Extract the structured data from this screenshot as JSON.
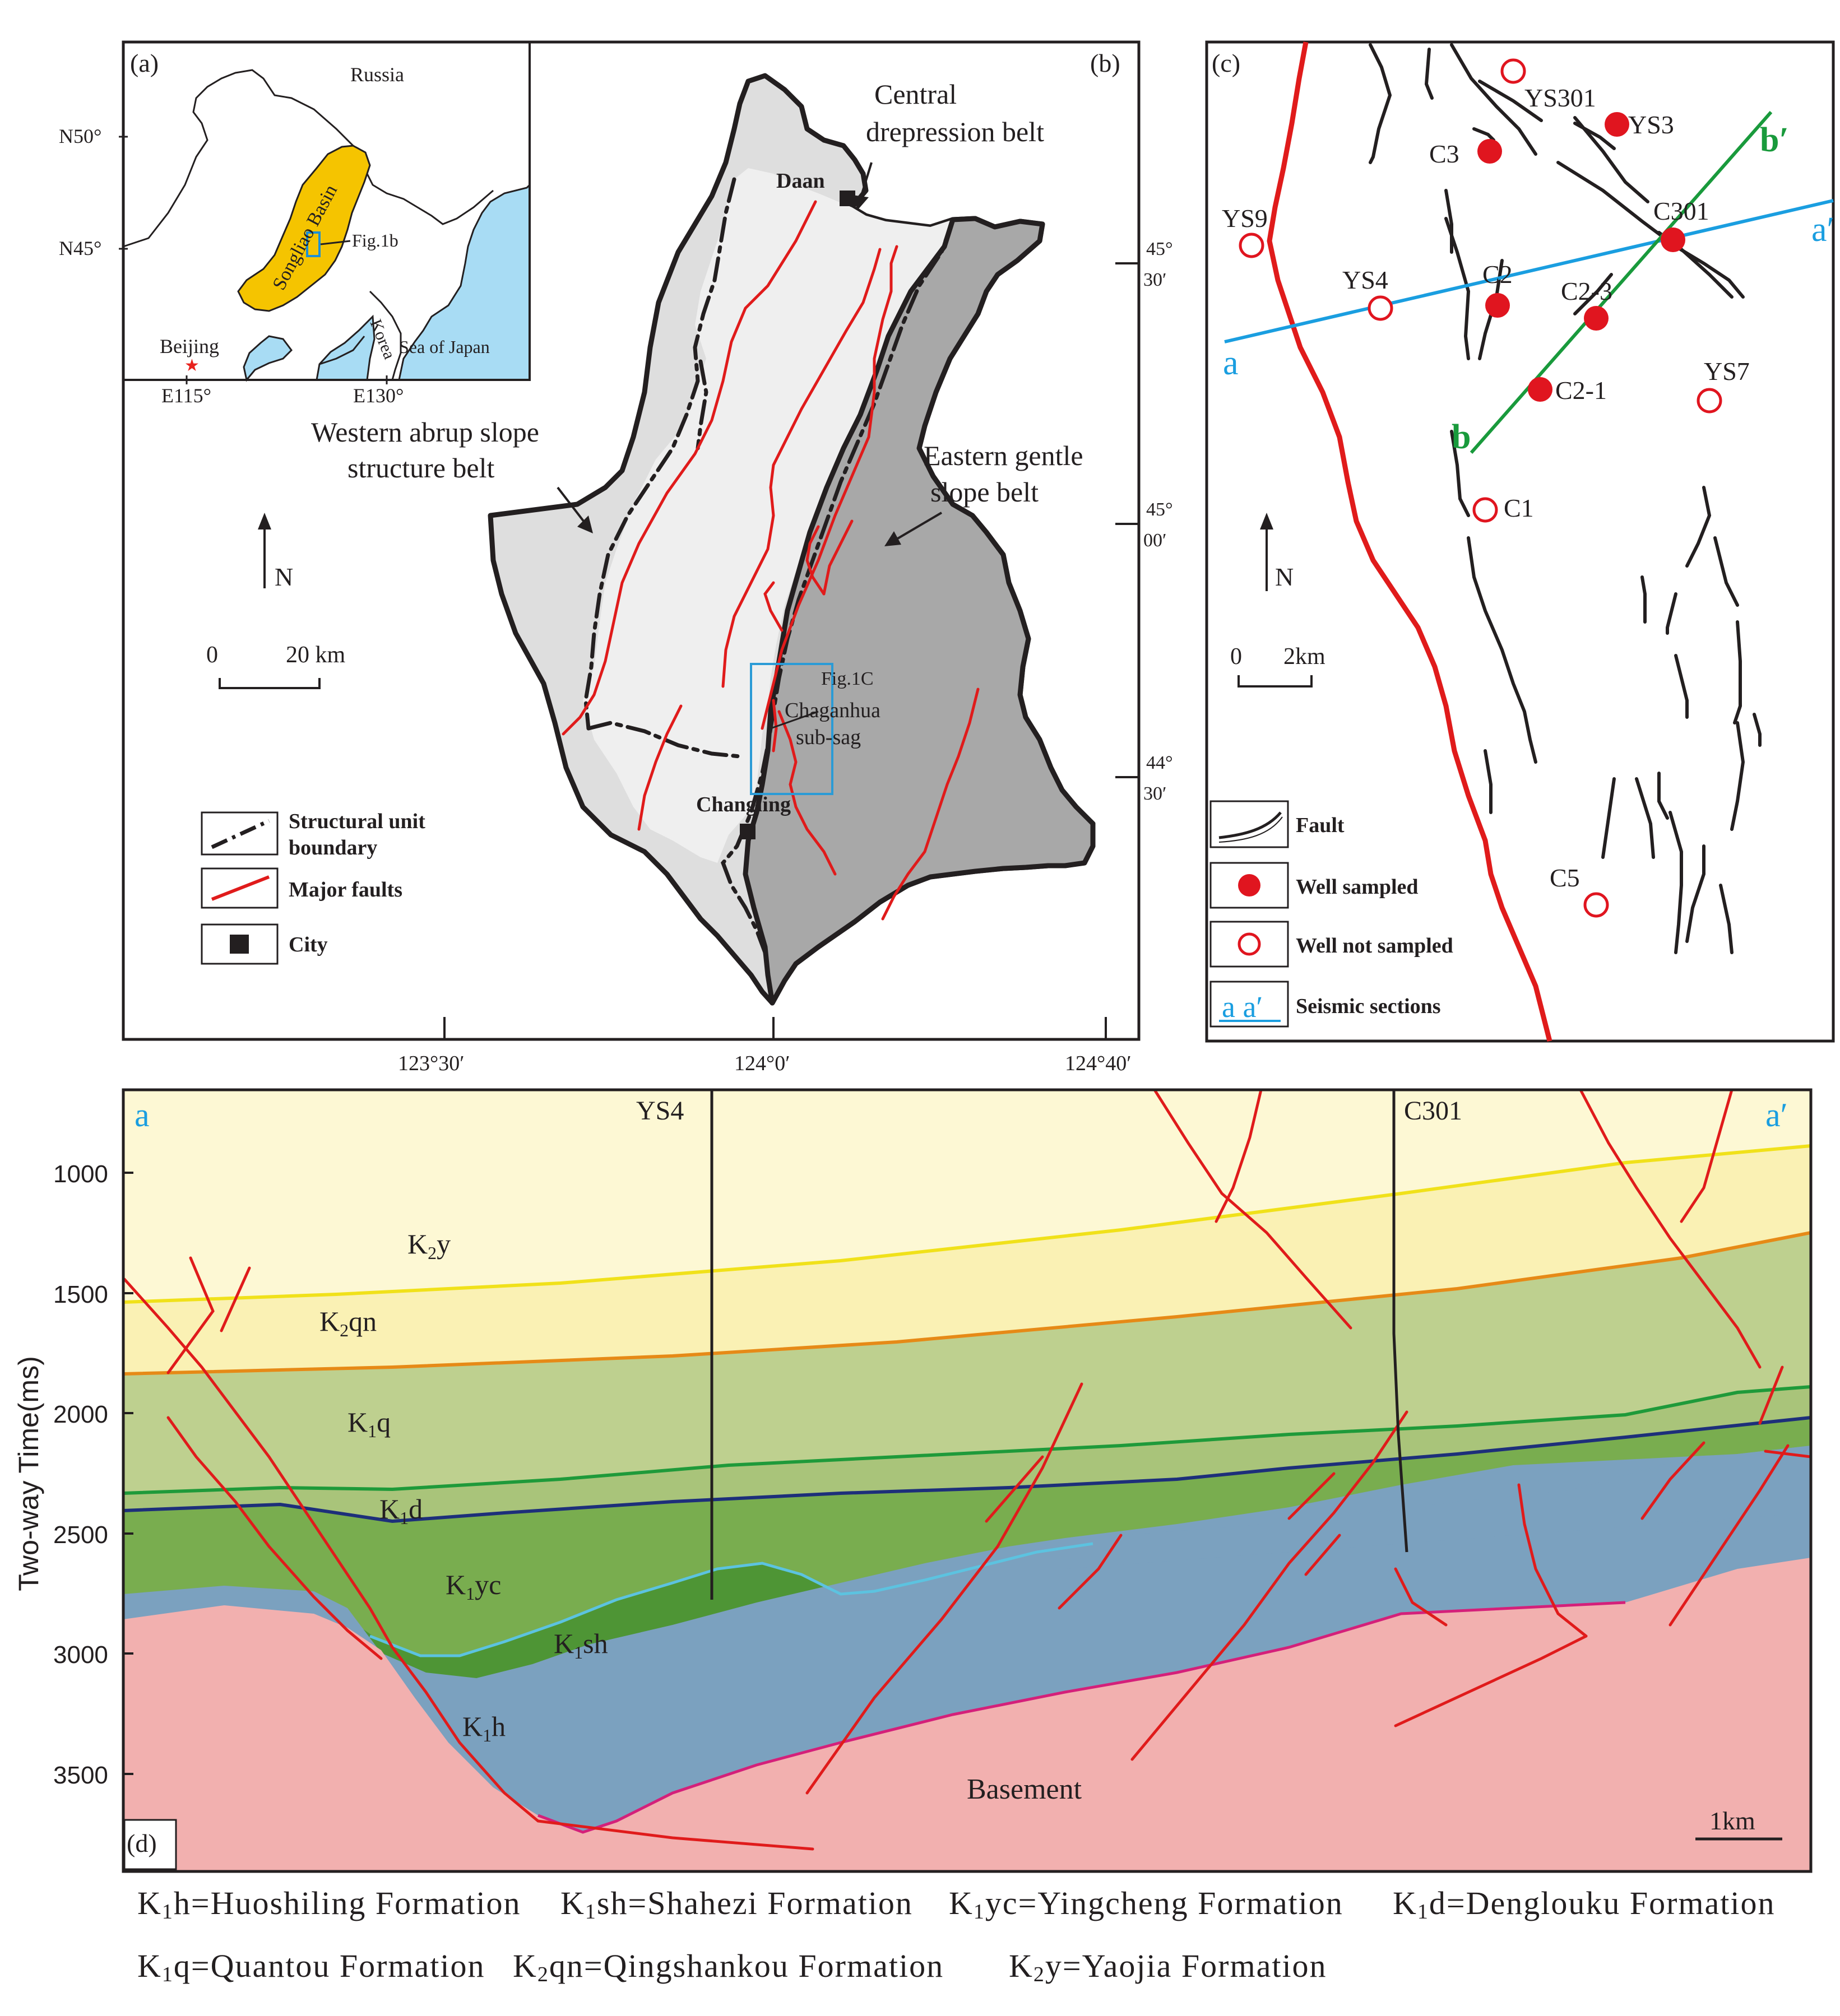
{
  "panel_a": {
    "label": "(a)",
    "lat_ticks": [
      "N50°",
      "N45°"
    ],
    "lon_ticks": [
      "E115°",
      "E130°"
    ],
    "country_russia": "Russia",
    "basin_name": "Songliao Basin",
    "fig_ref": "Fig.1b",
    "city": "Beijing",
    "korea": "Korea",
    "sea": "Sea of Japan",
    "colors": {
      "basin": "#f5c400",
      "sea": "#a8dcf4",
      "marker": "#e8231e"
    }
  },
  "panel_b": {
    "label": "(b)",
    "belt_central_1": "Central",
    "belt_central_2": "drepression belt",
    "belt_western_1": "Western abrup slope",
    "belt_western_2": "structure belt",
    "belt_eastern_1": "Eastern gentle",
    "belt_eastern_2": "slope  belt",
    "city_daan": "Daan",
    "city_changling": "Changling",
    "fig_ref": "Fig.1C",
    "subsag_1": "Chaganhua",
    "subsag_2": "sub-sag",
    "north": "N",
    "scale_0": "0",
    "scale_20": "20 km",
    "lat_ticks": [
      {
        "deg": "45°",
        "min": "30′"
      },
      {
        "deg": "45°",
        "min": "00′"
      },
      {
        "deg": "44°",
        "min": "30′"
      }
    ],
    "lon_ticks": [
      "123°30′",
      "124°0′",
      "124°40′"
    ],
    "legend": {
      "boundary_1": "Structural unit",
      "boundary_2": "boundary",
      "faults": "Major faults",
      "city": "City"
    },
    "colors": {
      "west": "#dedede",
      "central": "#efefef",
      "east": "#a8a8a8",
      "fault": "#e01b1b",
      "frame": "#2b9bd6"
    }
  },
  "panel_c": {
    "label": "(c)",
    "wells_sampled": [
      "YS3",
      "C3",
      "C301",
      "C2",
      "C2-3",
      "C2-1"
    ],
    "wells_not_sampled": [
      "YS301",
      "YS9",
      "YS4",
      "YS7",
      "C1",
      "C5"
    ],
    "line_a_start": "a",
    "line_a_end": "a′",
    "line_b_start": "b",
    "line_b_end": "b′",
    "north": "N",
    "scale_0": "0",
    "scale_2": "2km",
    "legend": {
      "fault": "Fault",
      "sampled": "Well sampled",
      "not_sampled": "Well not sampled",
      "section_symbol": "a a′",
      "sections": "Seismic sections"
    },
    "colors": {
      "well": "#e0151f",
      "line_a": "#1a9ee0",
      "line_b": "#199a3c"
    }
  },
  "panel_d": {
    "label": "(d)",
    "end_left": "a",
    "end_right": "a′",
    "well_1": "YS4",
    "well_2": "C301",
    "y_axis_title": "Two-way Time(ms)",
    "y_ticks": [
      "1000",
      "1500",
      "2000",
      "2500",
      "3000",
      "3500"
    ],
    "basement": "Basement",
    "scale": "1km",
    "layers": [
      {
        "base": "K",
        "sub": "2",
        "suffix": "y",
        "color": "#fdf8d4"
      },
      {
        "base": "K",
        "sub": "2",
        "suffix": "qn",
        "color": "#faf1b4"
      },
      {
        "base": "K",
        "sub": "1",
        "suffix": "q",
        "color": "#bed08f"
      },
      {
        "base": "K",
        "sub": "1",
        "suffix": "d",
        "color": "#a9c47a"
      },
      {
        "base": "K",
        "sub": "1",
        "suffix": "yc",
        "color": "#79ad4f"
      },
      {
        "base": "K",
        "sub": "1",
        "suffix": "sh",
        "color": "#4e9535"
      },
      {
        "base": "K",
        "sub": "1",
        "suffix": "h",
        "color": "#7ba1bf"
      },
      {
        "base": "Basement",
        "sub": "",
        "suffix": "",
        "color": "#f2b0af"
      }
    ]
  },
  "legend_text": {
    "row1": [
      {
        "base": "K",
        "sub": "1",
        "rest": "h=Huoshiling Formation"
      },
      {
        "base": "K",
        "sub": "1",
        "rest": "sh=Shahezi Formation"
      },
      {
        "base": "K",
        "sub": "1",
        "rest": "yc=Yingcheng Formation"
      },
      {
        "base": "K",
        "sub": "1",
        "rest": "d=Denglouku Formation"
      }
    ],
    "row2": [
      {
        "base": "K",
        "sub": "1",
        "rest": "q=Quantou Formation"
      },
      {
        "base": "K",
        "sub": "2",
        "rest": "qn=Qingshankou Formation"
      },
      {
        "base": "K",
        "sub": "2",
        "rest": "y=Yaojia Formation"
      }
    ]
  }
}
